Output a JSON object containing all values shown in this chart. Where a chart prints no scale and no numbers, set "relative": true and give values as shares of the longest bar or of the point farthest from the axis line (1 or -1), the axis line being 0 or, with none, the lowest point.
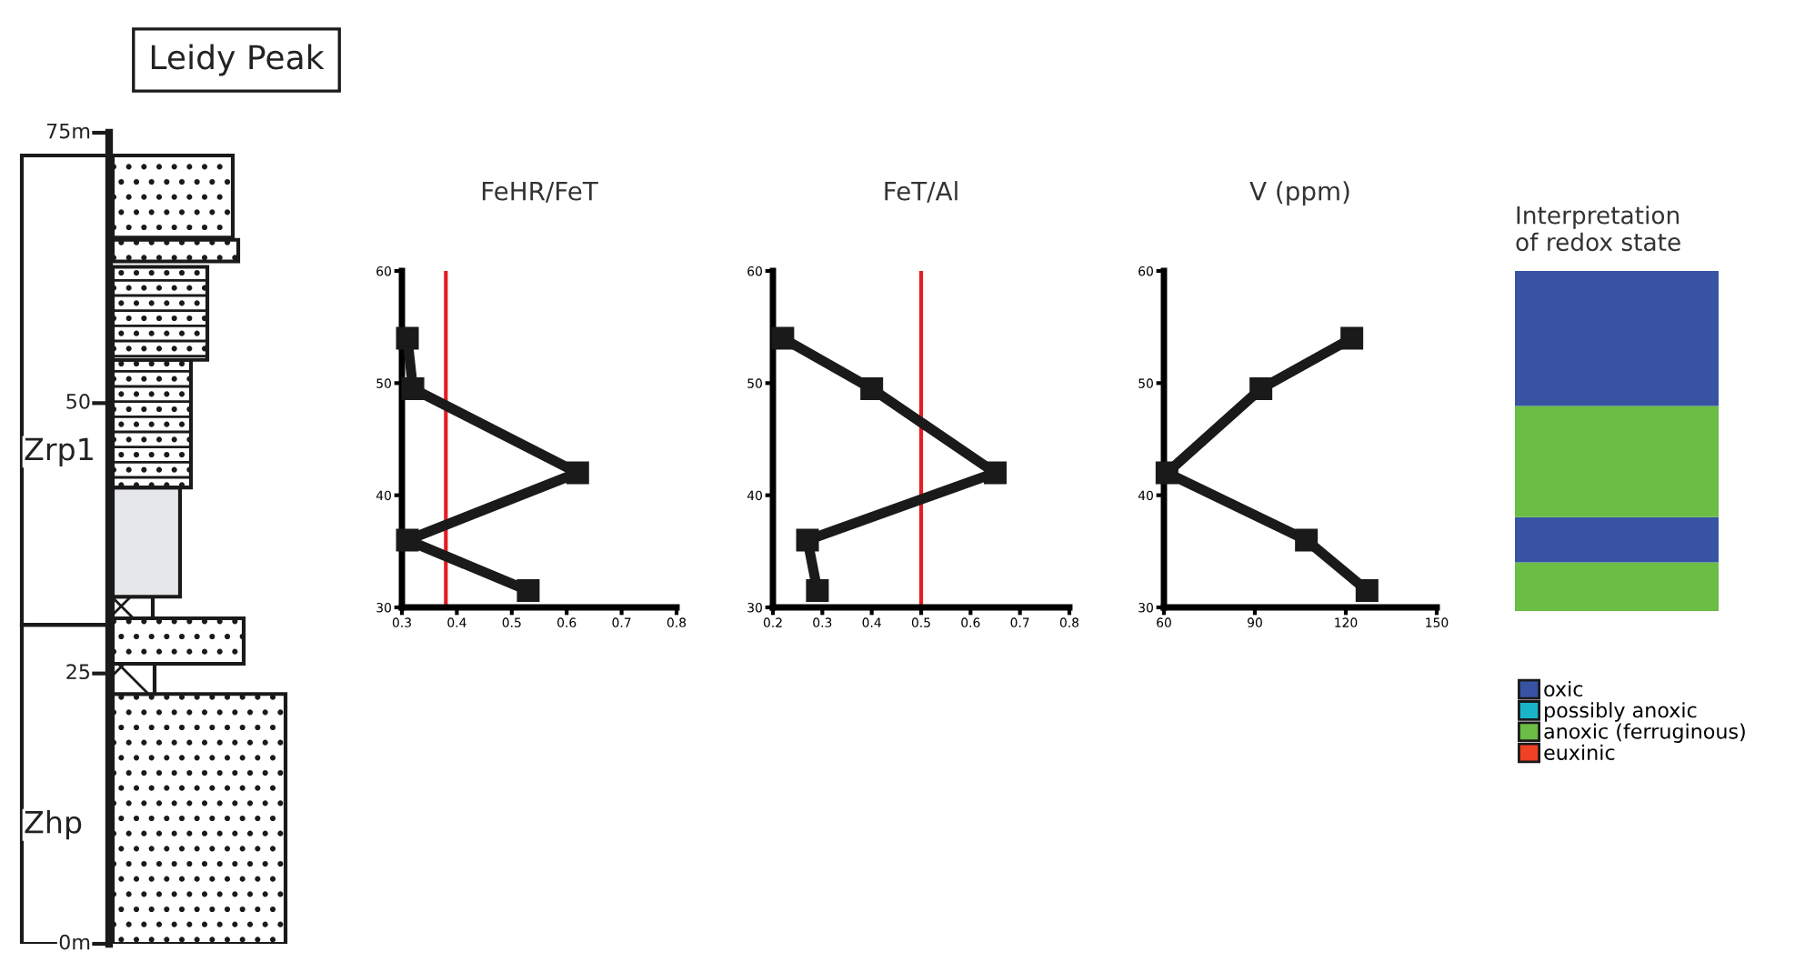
{
  "chart_data": [
    {
      "type": "other",
      "title": "Leidy Peak",
      "annotations": [
        "75m",
        "50",
        "25",
        "0m",
        "Zrp1",
        "Zhp"
      ]
    },
    {
      "type": "line",
      "title": "FeHR/FeT",
      "marker": "square",
      "line_style": "solid",
      "xlim": [
        0.3,
        0.8
      ],
      "xticks": [
        0.3,
        0.4,
        0.5,
        0.6,
        0.7,
        0.8
      ],
      "ylim": [
        30,
        60
      ],
      "yticks": [
        30,
        40,
        50,
        60
      ],
      "series": [
        {
          "color": "#1a1a1a",
          "x": [
            0.31,
            0.32,
            0.62,
            0.31,
            0.53
          ],
          "values": [
            54,
            49.5,
            42,
            36,
            31.5
          ]
        }
      ],
      "ref_lines": [
        {
          "axis": "x",
          "value": 0.38,
          "color": "#e31e24"
        }
      ]
    },
    {
      "type": "line",
      "title": "FeT/Al",
      "marker": "square",
      "line_style": "solid",
      "xlim": [
        0.2,
        0.8
      ],
      "xticks": [
        0.2,
        0.3,
        0.4,
        0.5,
        0.6,
        0.7,
        0.8
      ],
      "ylim": [
        30,
        60
      ],
      "yticks": [
        30,
        40,
        50,
        60
      ],
      "series": [
        {
          "color": "#1a1a1a",
          "x": [
            0.22,
            0.4,
            0.65,
            0.27,
            0.29
          ],
          "values": [
            54,
            49.5,
            42,
            36,
            31.5
          ]
        }
      ],
      "ref_lines": [
        {
          "axis": "x",
          "value": 0.5,
          "color": "#e31e24"
        }
      ]
    },
    {
      "type": "line",
      "title": "V (ppm)",
      "marker": "square",
      "line_style": "solid",
      "xlim": [
        60,
        150
      ],
      "xticks": [
        60,
        90,
        120,
        150
      ],
      "ylim": [
        30,
        60
      ],
      "yticks": [
        30,
        40,
        50,
        60
      ],
      "series": [
        {
          "color": "#1a1a1a",
          "x": [
            122,
            92,
            61,
            107,
            127
          ],
          "values": [
            54,
            49.5,
            42,
            36,
            31.5
          ]
        }
      ]
    },
    {
      "type": "bar",
      "title": "Interpretation\nof redox state",
      "stacked": true,
      "relative": true,
      "categories": [
        null
      ],
      "legend": "bottom",
      "series": [
        {
          "name": "oxic",
          "color": "#3953a4",
          "values": [
            0
          ]
        },
        {
          "name": "possibly anoxic",
          "color": "#1ab4c8",
          "values": [
            0
          ]
        },
        {
          "name": "anoxic (ferruginous)",
          "color": "#6abd45",
          "values": [
            0
          ]
        },
        {
          "name": "euxinic",
          "color": "#ef4123",
          "values": [
            0
          ]
        },
        {
          "color": "#6abd45",
          "values": [
            0.143
          ]
        },
        {
          "color": "#3953a4",
          "values": [
            0.133
          ]
        },
        {
          "color": "#6abd45",
          "values": [
            0.327
          ]
        },
        {
          "color": "#3953a4",
          "values": [
            0.397
          ]
        }
      ]
    }
  ]
}
